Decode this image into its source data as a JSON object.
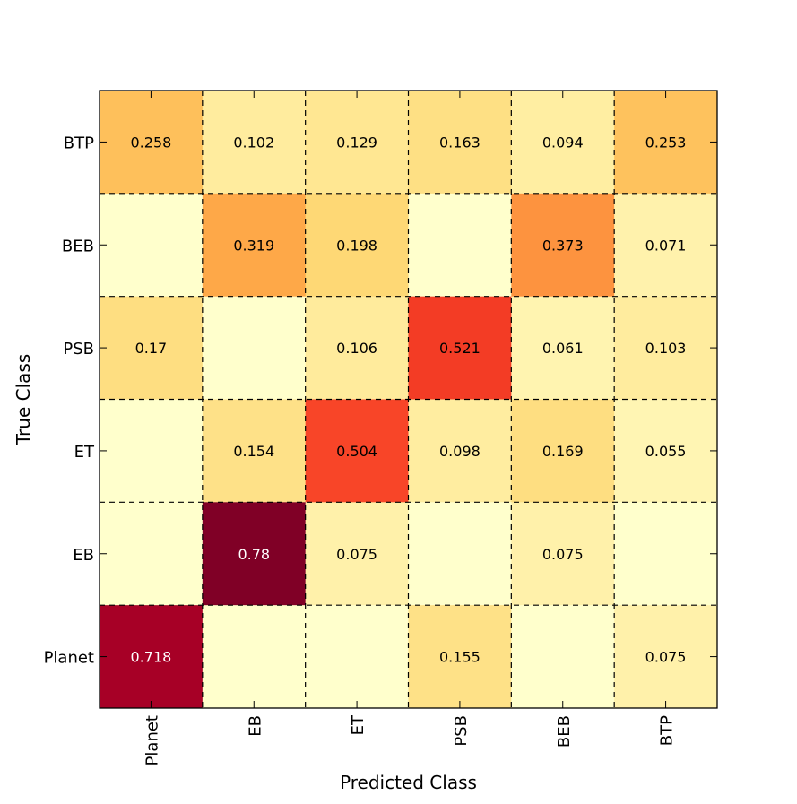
{
  "chart_data": {
    "type": "heatmap",
    "title": "",
    "xlabel": "Predicted Class",
    "ylabel": "True Class",
    "x_categories": [
      "Planet",
      "EB",
      "ET",
      "PSB",
      "BEB",
      "BTP"
    ],
    "y_categories": [
      "BTP",
      "BEB",
      "PSB",
      "ET",
      "EB",
      "Planet"
    ],
    "values": [
      [
        0.258,
        0.102,
        0.129,
        0.163,
        0.094,
        0.253
      ],
      [
        null,
        0.319,
        0.198,
        null,
        0.373,
        0.071
      ],
      [
        0.17,
        null,
        0.106,
        0.521,
        0.061,
        0.103
      ],
      [
        null,
        0.154,
        0.504,
        0.098,
        0.169,
        0.055
      ],
      [
        null,
        0.78,
        0.075,
        null,
        0.075,
        null
      ],
      [
        0.718,
        null,
        null,
        0.155,
        null,
        0.075
      ]
    ],
    "labels": [
      [
        "0.258",
        "0.102",
        "0.129",
        "0.163",
        "0.094",
        "0.253"
      ],
      [
        "",
        "0.319",
        "0.198",
        "",
        "0.373",
        "0.071"
      ],
      [
        "0.17",
        "",
        "0.106",
        "0.521",
        "0.061",
        "0.103"
      ],
      [
        "",
        "0.154",
        "0.504",
        "0.098",
        "0.169",
        "0.055"
      ],
      [
        "",
        "0.78",
        "0.075",
        "",
        "0.075",
        ""
      ],
      [
        "0.718",
        "",
        "",
        "0.155",
        "",
        "0.075"
      ]
    ],
    "colormap": "YlOrRd",
    "vmin": 0,
    "vmax": 0.78,
    "grid": true,
    "grid_style": "dashed",
    "label_dark_color": "#000000",
    "label_light_color": "#ffffff"
  }
}
